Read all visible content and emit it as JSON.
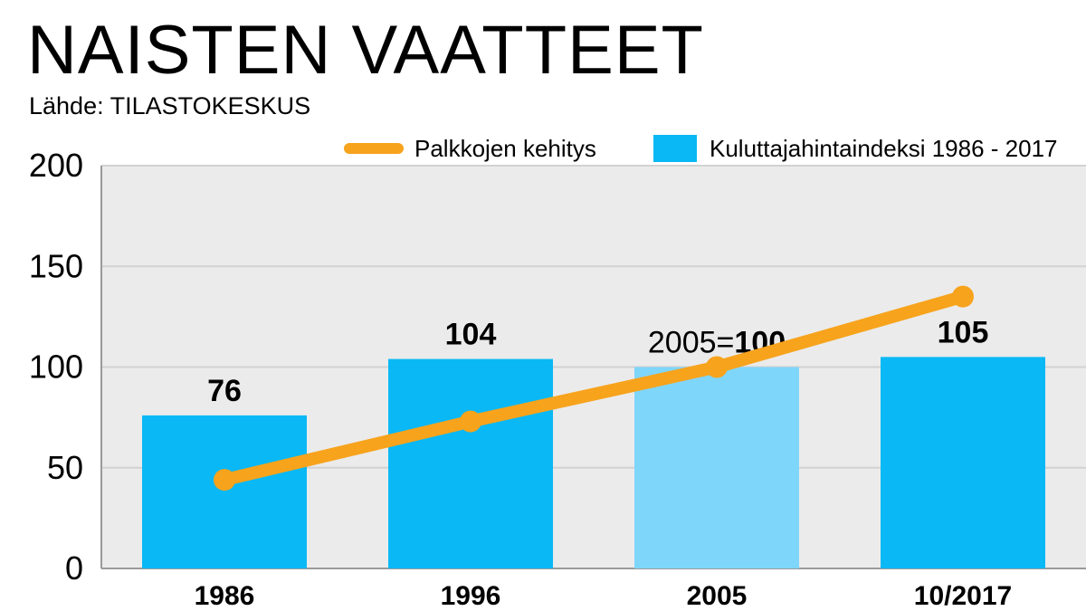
{
  "header": {
    "title": "NAISTEN VAATTEET",
    "subtitle": "Lähde: TILASTOKESKUS"
  },
  "legend": {
    "line_label": "Palkkojen kehitys",
    "bar_label": "Kuluttajahintaindeksi 1986 - 2017"
  },
  "chart_data": {
    "type": "bar",
    "categories": [
      "1986",
      "1996",
      "2005",
      "10/2017"
    ],
    "ylim": [
      0,
      200
    ],
    "yticks": [
      0,
      50,
      100,
      150,
      200
    ],
    "grid": true,
    "legend_position": "top-right",
    "series": [
      {
        "name": "Kuluttajahintaindeksi 1986 - 2017",
        "type": "bar",
        "values": [
          76,
          104,
          100,
          105
        ],
        "labels": [
          "76",
          "104",
          "100",
          "105"
        ],
        "label_prefixes": [
          "",
          "",
          "2005=",
          ""
        ],
        "color": "#0ab8f5",
        "highlight_index": 2,
        "highlight_color": "#7fd6fb"
      },
      {
        "name": "Palkkojen kehitys",
        "type": "line",
        "values": [
          44,
          73,
          100,
          135
        ],
        "color": "#f7a31c"
      }
    ],
    "plot_background": "#ebebeb",
    "grid_color": "#d2d2d2"
  }
}
